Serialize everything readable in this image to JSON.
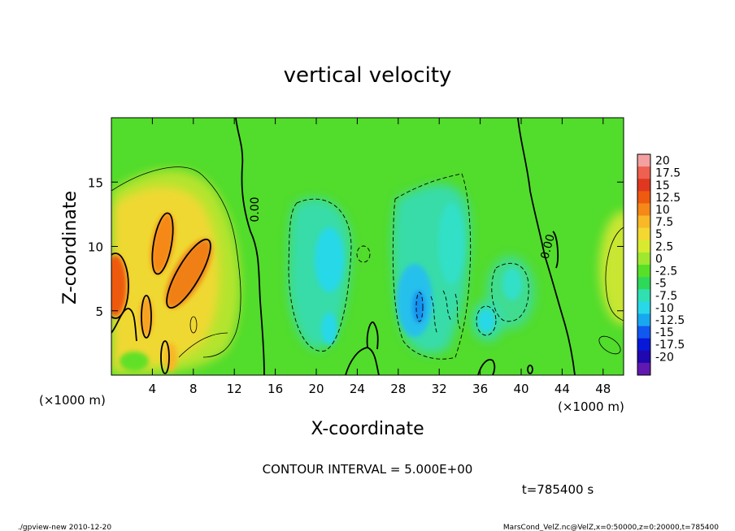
{
  "chart_data": {
    "type": "heatmap",
    "title": "vertical velocity",
    "xlabel": "X-coordinate",
    "ylabel": "Z-coordinate",
    "x_unit": "(×1000 m)",
    "z_unit": "(×1000 m)",
    "xlim": [
      0,
      50
    ],
    "ylim": [
      0,
      20
    ],
    "x_ticks": [
      4,
      8,
      12,
      16,
      20,
      24,
      28,
      32,
      36,
      40,
      44,
      48
    ],
    "y_ticks": [
      5,
      10,
      15
    ],
    "contour_interval_label": "CONTOUR INTERVAL = 5.000E+00",
    "zero_contour_label": "0.00",
    "time_label": "t=785400 s",
    "colorbar": {
      "labels": [
        "20",
        "17.5",
        "15",
        "12.5",
        "10",
        "7.5",
        "5",
        "2.5",
        "0",
        "-2.5",
        "-5",
        "-7.5",
        "-10",
        "-12.5",
        "-15",
        "-17.5",
        "-20"
      ],
      "colors": [
        "#f4a0a0",
        "#ee6050",
        "#e03820",
        "#ee5a10",
        "#f58818",
        "#f8b828",
        "#f2d830",
        "#d8ea30",
        "#a0e830",
        "#58e028",
        "#2ed858",
        "#30e0b0",
        "#28d8e8",
        "#18a8f0",
        "#1058f0",
        "#0818d8",
        "#2008b0",
        "#6018b0"
      ]
    },
    "field_features": [
      {
        "kind": "max",
        "x": 1.0,
        "z": 7.0,
        "value": 12.5
      },
      {
        "kind": "max",
        "x": 6.0,
        "z": 12.0,
        "value": 10
      },
      {
        "kind": "max",
        "x": 8.0,
        "z": 9.0,
        "value": 12
      },
      {
        "kind": "max",
        "x": 3.5,
        "z": 6.0,
        "value": 10
      },
      {
        "kind": "min",
        "x": 21.5,
        "z": 9.5,
        "value": -7.5
      },
      {
        "kind": "min",
        "x": 30.0,
        "z": 5.0,
        "value": -10
      },
      {
        "kind": "min",
        "x": 36.5,
        "z": 5.0,
        "value": -7.5
      }
    ]
  },
  "footer": {
    "left": "./gpview-new  2010-12-20",
    "right": "MarsCond_VelZ.nc@VelZ,x=0:50000,z=0:20000,t=785400"
  }
}
